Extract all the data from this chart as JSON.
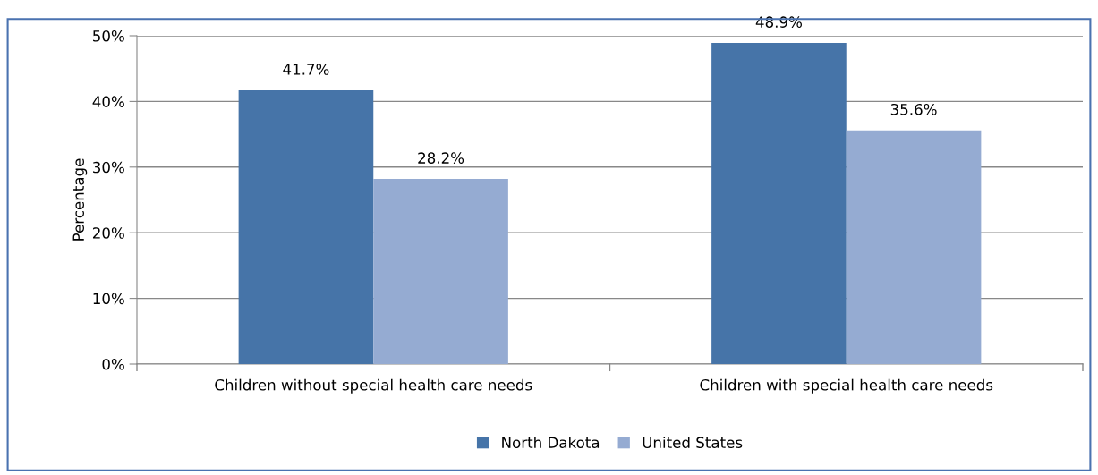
{
  "chart_data": {
    "type": "bar",
    "ylabel": "Percentage",
    "categories": [
      "Children without special health care needs",
      "Children with special health care needs"
    ],
    "series": [
      {
        "name": "North Dakota",
        "color": "#4674a8",
        "values": [
          41.7,
          48.9
        ]
      },
      {
        "name": "United States",
        "color": "#95abd2",
        "values": [
          28.2,
          35.6
        ]
      }
    ],
    "ylim": [
      0,
      50
    ],
    "yticks": [
      {
        "value": 0,
        "label": "0%"
      },
      {
        "value": 10,
        "label": "10%"
      },
      {
        "value": 20,
        "label": "20%"
      },
      {
        "value": 30,
        "label": "30%"
      },
      {
        "value": 40,
        "label": "40%"
      },
      {
        "value": 50,
        "label": "50%"
      }
    ],
    "grid": "y",
    "legend": "bottom",
    "value_labels": [
      [
        "41.7%",
        "48.9%"
      ],
      [
        "28.2%",
        "35.6%"
      ]
    ]
  }
}
